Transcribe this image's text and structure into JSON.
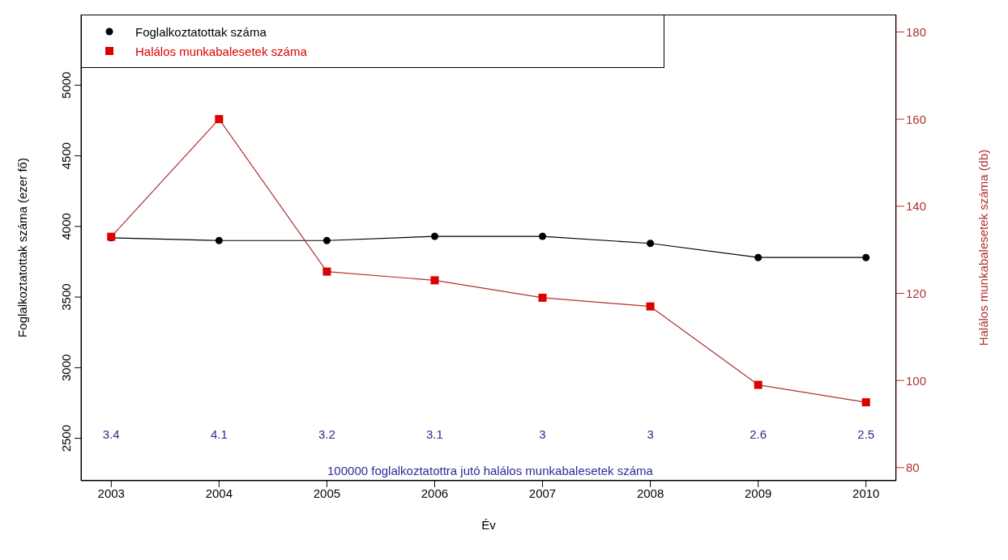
{
  "chart_data": {
    "type": "line",
    "xlabel": "Év",
    "ylabel": "Foglalkoztatottak száma (ezer fő)",
    "y2label": "Halálos munkabalesetek száma (db)",
    "categories": [
      "2003",
      "2004",
      "2005",
      "2006",
      "2007",
      "2008",
      "2009",
      "2010"
    ],
    "series": [
      {
        "name": "Foglalkoztatottak száma",
        "color": "#000000",
        "marker": "circle",
        "values": [
          3920,
          3900,
          3900,
          3930,
          3930,
          3880,
          3780,
          3780
        ]
      },
      {
        "name": "Halálos munkabalesetek száma",
        "color": "#dd0000",
        "marker": "square",
        "axis": "y2",
        "values": [
          133,
          160,
          125,
          123,
          119,
          117,
          99,
          95
        ]
      }
    ],
    "ylim": [
      2200,
      5500
    ],
    "yticks": [
      2500,
      3000,
      3500,
      4000,
      4500,
      5000
    ],
    "y2lim": [
      77,
      184
    ],
    "y2ticks": [
      80,
      100,
      120,
      140,
      160,
      180
    ],
    "legend": "top left",
    "annotations": [
      "3.4",
      "4.1",
      "3.2",
      "3.1",
      "3",
      "3",
      "2.6",
      "2.5",
      "100000 foglalkoztatottra jutó halálos munkabalesetek száma"
    ]
  }
}
